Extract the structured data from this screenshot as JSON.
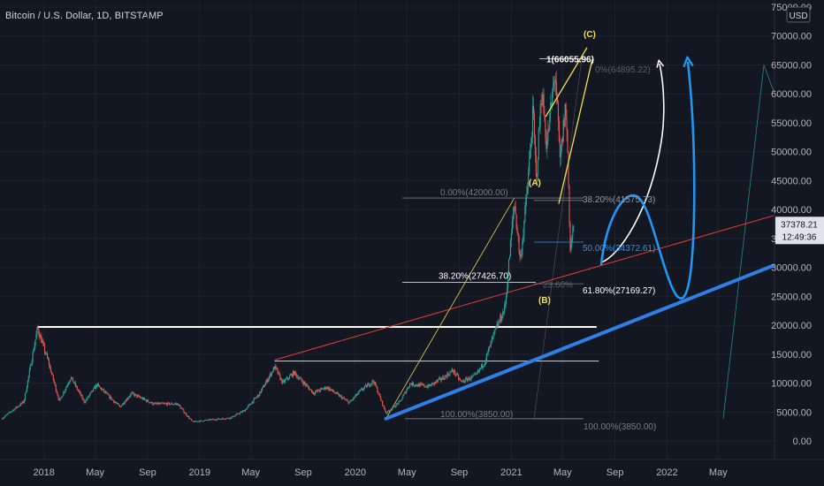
{
  "header": {
    "title": "Bitcoin / U.S. Dollar, 1D, BITSTAMP"
  },
  "chart_data": {
    "type": "candlestick",
    "title": "Bitcoin / U.S. Dollar, 1D, BITSTAMP",
    "currency": "USD",
    "ylim": [
      0,
      75000
    ],
    "y_ticks": [
      "75000.00",
      "70000.00",
      "65000.00",
      "60000.00",
      "55000.00",
      "50000.00",
      "45000.00",
      "40000.00",
      "35000.00",
      "30000.00",
      "25000.00",
      "20000.00",
      "15000.00",
      "10000.00",
      "5000.00",
      "0.00"
    ],
    "y_tick_values": [
      75000,
      70000,
      65000,
      60000,
      55000,
      50000,
      45000,
      40000,
      35000,
      30000,
      25000,
      20000,
      15000,
      10000,
      5000,
      0
    ],
    "x_ticks": [
      "2018",
      "May",
      "Sep",
      "2019",
      "May",
      "Sep",
      "2020",
      "May",
      "Sep",
      "2021",
      "May",
      "Sep",
      "2022",
      "May"
    ],
    "x_tick_dates": [
      "2018-01-01",
      "2018-05-01",
      "2018-09-01",
      "2019-01-01",
      "2019-05-01",
      "2019-09-01",
      "2020-01-01",
      "2020-05-01",
      "2020-09-01",
      "2021-01-01",
      "2021-05-01",
      "2021-09-01",
      "2022-01-01",
      "2022-05-01"
    ],
    "x_range": [
      "2017-09-20",
      "2022-09-10"
    ],
    "last_price": "37378.21",
    "countdown": "12:49:36",
    "price_path": [
      [
        "2017-09-25",
        3900
      ],
      [
        "2017-11-15",
        6800
      ],
      [
        "2017-12-17",
        19500
      ],
      [
        "2018-01-10",
        14000
      ],
      [
        "2018-02-06",
        6900
      ],
      [
        "2018-03-05",
        11000
      ],
      [
        "2018-04-06",
        6700
      ],
      [
        "2018-05-05",
        9700
      ],
      [
        "2018-06-28",
        5900
      ],
      [
        "2018-07-25",
        8200
      ],
      [
        "2018-09-15",
        6400
      ],
      [
        "2018-11-10",
        6400
      ],
      [
        "2018-12-15",
        3300
      ],
      [
        "2019-01-20",
        3600
      ],
      [
        "2019-03-15",
        4000
      ],
      [
        "2019-04-15",
        5200
      ],
      [
        "2019-05-20",
        8000
      ],
      [
        "2019-06-26",
        12800
      ],
      [
        "2019-07-15",
        10000
      ],
      [
        "2019-08-10",
        11800
      ],
      [
        "2019-09-25",
        8300
      ],
      [
        "2019-10-26",
        9300
      ],
      [
        "2019-12-18",
        6600
      ],
      [
        "2020-01-15",
        8800
      ],
      [
        "2020-02-13",
        10400
      ],
      [
        "2020-03-13",
        4800
      ],
      [
        "2020-04-15",
        6800
      ],
      [
        "2020-05-08",
        9900
      ],
      [
        "2020-06-20",
        9400
      ],
      [
        "2020-07-27",
        11000
      ],
      [
        "2020-08-17",
        12200
      ],
      [
        "2020-09-05",
        10200
      ],
      [
        "2020-10-10",
        11300
      ],
      [
        "2020-10-31",
        13800
      ],
      [
        "2020-11-24",
        19000
      ],
      [
        "2020-12-17",
        23000
      ],
      [
        "2021-01-08",
        41500
      ],
      [
        "2021-01-22",
        31000
      ],
      [
        "2021-02-08",
        44000
      ],
      [
        "2021-02-21",
        57000
      ],
      [
        "2021-02-28",
        45000
      ],
      [
        "2021-03-13",
        61000
      ],
      [
        "2021-03-25",
        51000
      ],
      [
        "2021-04-14",
        64000
      ],
      [
        "2021-04-25",
        48000
      ],
      [
        "2021-05-08",
        58000
      ],
      [
        "2021-05-13",
        50000
      ],
      [
        "2021-05-19",
        33000
      ],
      [
        "2021-05-27",
        37378
      ]
    ],
    "levels": {
      "white_h1": {
        "price": 19700,
        "from": "2017-12-17",
        "to": "2021-07-20"
      },
      "white_h2": {
        "price": 13800,
        "from": "2019-06-26",
        "to": "2021-07-25"
      },
      "fib_left": [
        {
          "label": "0.00%(42000.00)",
          "price": 42000
        },
        {
          "label": "38.20%(27426.70)",
          "price": 27426.7
        },
        {
          "label": "100.00%(3850.00)",
          "price": 3850
        }
      ],
      "fib_right": [
        {
          "label": "1(66055.96)",
          "price": 66055.96
        },
        {
          "label": "0%(64895.22)",
          "price": 64895.22
        },
        {
          "label": "38.20%(41575.73)",
          "price": 41575.73
        },
        {
          "label": "50.00%(34372.61)",
          "price": 34372.61
        },
        {
          "label": "61.80%(27169.27)",
          "price": 27169.27
        },
        {
          "label": "100.00%(3850.00)",
          "price": 3850
        }
      ],
      "hidden_label": "23.60%"
    },
    "waves": [
      "(A)",
      "(B)",
      "(C)"
    ]
  }
}
